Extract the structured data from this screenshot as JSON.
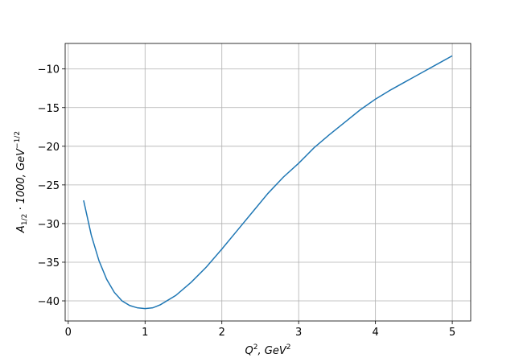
{
  "chart_data": {
    "type": "line",
    "xlabel": [
      {
        "text": "Q"
      },
      {
        "text": "2",
        "script": "sup"
      },
      {
        "text": ", GeV"
      },
      {
        "text": "2",
        "script": "sup"
      }
    ],
    "ylabel": [
      {
        "text": "A"
      },
      {
        "text": "1/2",
        "script": "sub"
      },
      {
        "text": " · 1000, GeV"
      },
      {
        "text": "−1/2",
        "script": "sup"
      }
    ],
    "x": [
      0.2,
      0.3,
      0.4,
      0.5,
      0.6,
      0.7,
      0.8,
      0.9,
      1.0,
      1.1,
      1.2,
      1.4,
      1.6,
      1.8,
      2.0,
      2.2,
      2.4,
      2.6,
      2.8,
      3.0,
      3.2,
      3.4,
      3.6,
      3.8,
      4.0,
      4.2,
      4.4,
      4.6,
      4.8,
      5.0
    ],
    "series": [
      {
        "color": "#1f77b4",
        "values": [
          -27.0,
          -31.5,
          -34.8,
          -37.2,
          -38.9,
          -40.0,
          -40.6,
          -40.9,
          -41.0,
          -40.9,
          -40.5,
          -39.3,
          -37.6,
          -35.6,
          -33.3,
          -30.9,
          -28.5,
          -26.1,
          -24.0,
          -22.2,
          -20.2,
          -18.5,
          -16.9,
          -15.3,
          -13.9,
          -12.7,
          -11.6,
          -10.5,
          -9.4,
          -8.3
        ]
      }
    ],
    "xlim": [
      -0.04,
      5.24
    ],
    "ylim": [
      -42.6,
      -6.7
    ],
    "xticks": [
      0,
      1,
      2,
      3,
      4,
      5
    ],
    "yticks": [
      {
        "value": -40,
        "label": "−40"
      },
      {
        "value": -35,
        "label": "−35"
      },
      {
        "value": -30,
        "label": "−30"
      },
      {
        "value": -25,
        "label": "−25"
      },
      {
        "value": -20,
        "label": "−20"
      },
      {
        "value": -15,
        "label": "−15"
      },
      {
        "value": -10,
        "label": "−10"
      }
    ],
    "grid": true
  }
}
